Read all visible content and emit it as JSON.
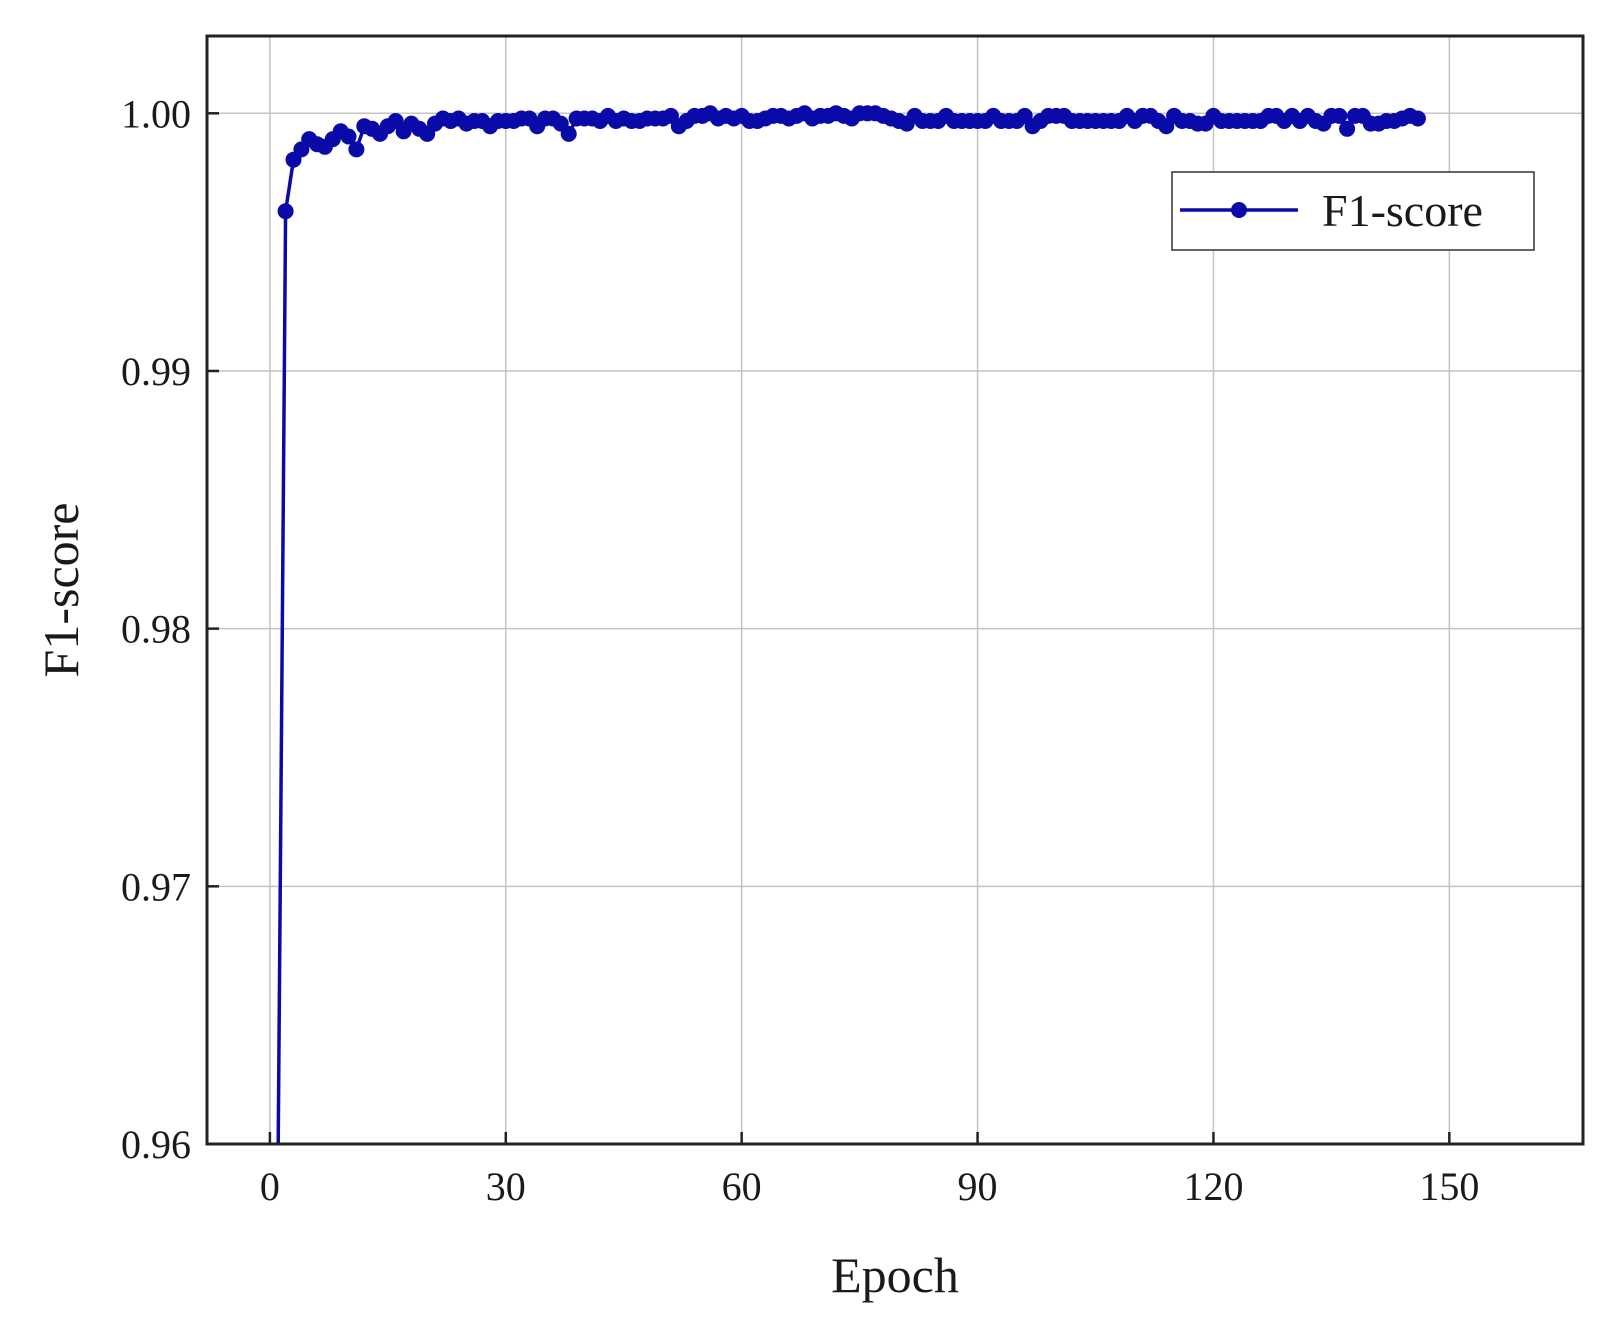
{
  "chart_data": {
    "type": "line",
    "xlabel": "Epoch",
    "ylabel": "F1-score",
    "xlim": [
      -8,
      167
    ],
    "ylim": [
      0.96,
      1.003
    ],
    "xticks": [
      0,
      30,
      60,
      90,
      120,
      150
    ],
    "xtick_labels": [
      "0",
      "30",
      "60",
      "90",
      "120",
      "150"
    ],
    "yticks": [
      0.96,
      0.97,
      0.98,
      0.99,
      1.0
    ],
    "ytick_labels": [
      "0.96",
      "0.97",
      "0.98",
      "0.99",
      "1.00"
    ],
    "grid": true,
    "legend_position": "top-right",
    "series": [
      {
        "name": "F1-score",
        "color": "#0a0aa8",
        "marker": "circle",
        "x": [
          1,
          2,
          3,
          4,
          5,
          6,
          7,
          8,
          9,
          10,
          11,
          12,
          13,
          14,
          15,
          16,
          17,
          18,
          19,
          20,
          21,
          22,
          23,
          24,
          25,
          26,
          27,
          28,
          29,
          30,
          31,
          32,
          33,
          34,
          35,
          36,
          37,
          38,
          39,
          40,
          41,
          42,
          43,
          44,
          45,
          46,
          47,
          48,
          49,
          50,
          51,
          52,
          53,
          54,
          55,
          56,
          57,
          58,
          59,
          60,
          61,
          62,
          63,
          64,
          65,
          66,
          67,
          68,
          69,
          70,
          71,
          72,
          73,
          74,
          75,
          76,
          77,
          78,
          79,
          80,
          81,
          82,
          83,
          84,
          85,
          86,
          87,
          88,
          89,
          90,
          91,
          92,
          93,
          94,
          95,
          96,
          97,
          98,
          99,
          100,
          101,
          102,
          103,
          104,
          105,
          106,
          107,
          108,
          109,
          110,
          111,
          112,
          113,
          114,
          115,
          116,
          117,
          118,
          119,
          120,
          121,
          122,
          123,
          124,
          125,
          126,
          127,
          128,
          129,
          130,
          131,
          132,
          133,
          134,
          135,
          136,
          137,
          138,
          139,
          140,
          141,
          142,
          143,
          144,
          145,
          146
        ],
        "y": [
          0.958,
          0.9962,
          0.9982,
          0.9986,
          0.999,
          0.9988,
          0.9987,
          0.999,
          0.9993,
          0.9991,
          0.9986,
          0.9995,
          0.9994,
          0.9992,
          0.9995,
          0.9997,
          0.9993,
          0.9996,
          0.9994,
          0.9992,
          0.9996,
          0.9998,
          0.9997,
          0.9998,
          0.9996,
          0.9997,
          0.9997,
          0.9995,
          0.9997,
          0.9997,
          0.9997,
          0.9998,
          0.9998,
          0.9995,
          0.9998,
          0.9998,
          0.9996,
          0.9992,
          0.9998,
          0.9998,
          0.9998,
          0.9997,
          0.9999,
          0.9997,
          0.9998,
          0.9997,
          0.9997,
          0.9998,
          0.9998,
          0.9998,
          0.9999,
          0.9995,
          0.9997,
          0.9999,
          0.9999,
          1.0,
          0.9998,
          0.9999,
          0.9998,
          0.9999,
          0.9997,
          0.9997,
          0.9998,
          0.9999,
          0.9999,
          0.9998,
          0.9999,
          1.0,
          0.9998,
          0.9999,
          0.9999,
          1.0,
          0.9999,
          0.9998,
          1.0,
          1.0,
          1.0,
          0.9999,
          0.9998,
          0.9997,
          0.9996,
          0.9999,
          0.9997,
          0.9997,
          0.9997,
          0.9999,
          0.9997,
          0.9997,
          0.9997,
          0.9997,
          0.9997,
          0.9999,
          0.9997,
          0.9997,
          0.9997,
          0.9999,
          0.9995,
          0.9997,
          0.9999,
          0.9999,
          0.9999,
          0.9997,
          0.9997,
          0.9997,
          0.9997,
          0.9997,
          0.9997,
          0.9997,
          0.9999,
          0.9997,
          0.9999,
          0.9999,
          0.9997,
          0.9995,
          0.9999,
          0.9997,
          0.9997,
          0.9996,
          0.9996,
          0.9999,
          0.9997,
          0.9997,
          0.9997,
          0.9997,
          0.9997,
          0.9997,
          0.9999,
          0.9999,
          0.9997,
          0.9999,
          0.9997,
          0.9999,
          0.9997,
          0.9996,
          0.9999,
          0.9999,
          0.9994,
          0.9999,
          0.9999,
          0.9996,
          0.9996,
          0.9997,
          0.9997,
          0.9998,
          0.9999,
          0.9998
        ]
      }
    ]
  }
}
